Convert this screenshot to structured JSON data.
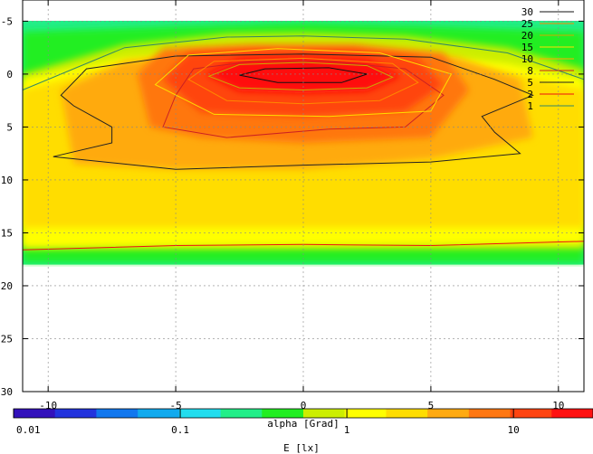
{
  "chart_data": {
    "type": "heatmap",
    "title": "",
    "xlabel": "alpha [Grad]",
    "ylabel": "",
    "xlim": [
      -11,
      11
    ],
    "ylim": [
      30,
      -7
    ],
    "y_reversed": true,
    "grid": true,
    "x_ticks": [
      -10,
      -5,
      0,
      5,
      10
    ],
    "x_tick_labels": [
      "-10",
      "-5",
      "0",
      "5",
      "10"
    ],
    "y_ticks": [
      -5,
      0,
      5,
      10,
      15,
      20,
      25,
      30
    ],
    "y_tick_labels": [
      "-5",
      "0",
      "5",
      "10",
      "15",
      "20",
      "25",
      "30"
    ],
    "data_extent": {
      "x": [
        -11,
        11
      ],
      "y": [
        -6,
        18
      ]
    },
    "colorbar": {
      "label": "E [lx]",
      "scale": "log",
      "range": [
        0.01,
        30
      ],
      "ticks": [
        0.01,
        0.1,
        1,
        10
      ],
      "tick_labels": [
        "0.01",
        "0.1",
        "1",
        "10"
      ],
      "colors": [
        "#3311bb",
        "#2233dd",
        "#1177ee",
        "#11aaee",
        "#22ddee",
        "#22ee88",
        "#22ee22",
        "#ccee00",
        "#ffff00",
        "#ffdd00",
        "#ffaa11",
        "#ff7711",
        "#ff4411",
        "#ff1111"
      ]
    },
    "contour_levels": [
      {
        "level": "30",
        "color": "#111111"
      },
      {
        "level": "25",
        "color": "#ff8800"
      },
      {
        "level": "20",
        "color": "#ccaa00"
      },
      {
        "level": "15",
        "color": "#ffdd00"
      },
      {
        "level": "10",
        "color": "#ffaa00"
      },
      {
        "level": "8",
        "color": "#cc2222"
      },
      {
        "level": "5",
        "color": "#222222"
      },
      {
        "level": "2",
        "color": "#ee1111"
      },
      {
        "level": "1",
        "color": "#338866"
      }
    ]
  }
}
